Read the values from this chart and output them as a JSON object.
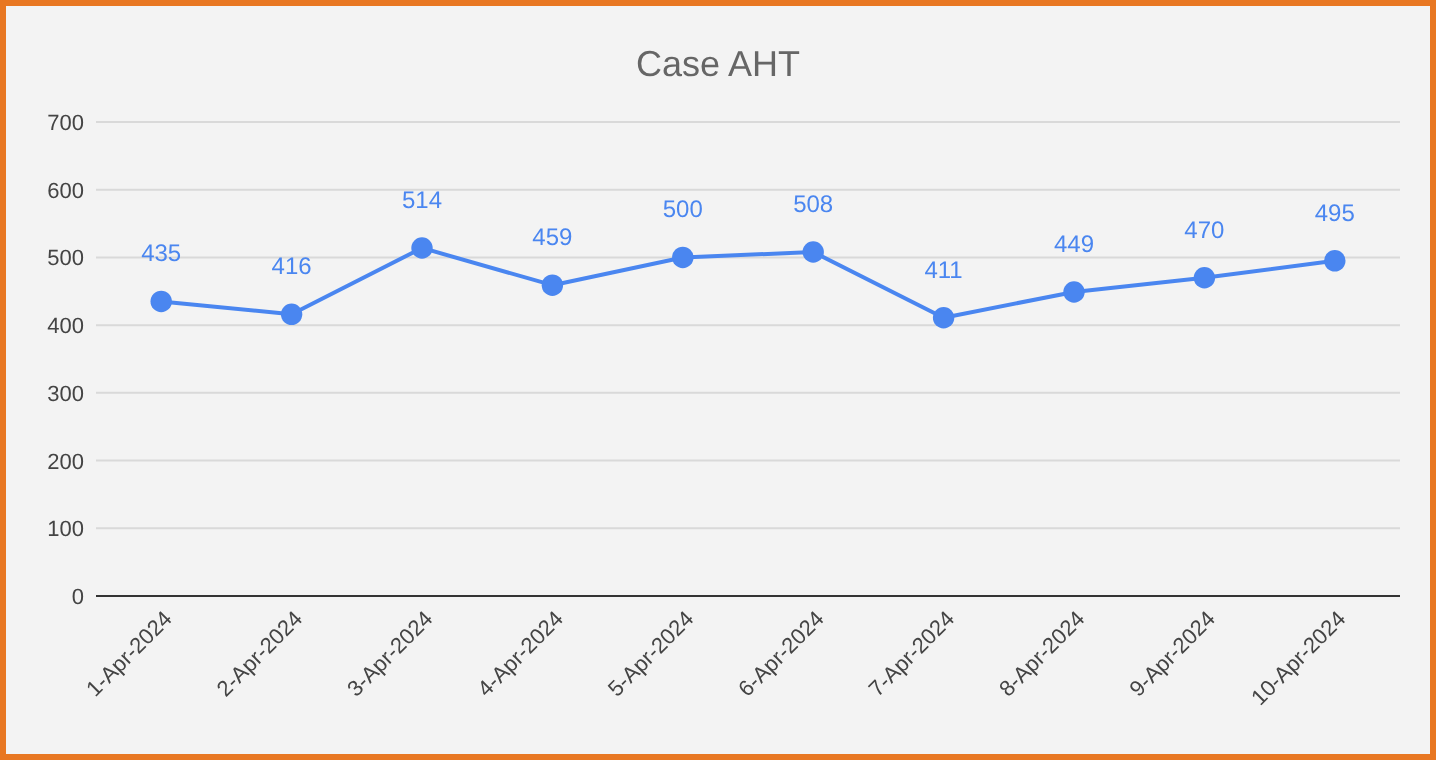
{
  "chart_data": {
    "type": "line",
    "title": "Case AHT",
    "categories": [
      "1-Apr-2024",
      "2-Apr-2024",
      "3-Apr-2024",
      "4-Apr-2024",
      "5-Apr-2024",
      "6-Apr-2024",
      "7-Apr-2024",
      "8-Apr-2024",
      "9-Apr-2024",
      "10-Apr-2024"
    ],
    "series": [
      {
        "color": "#4a86f0",
        "values": [
          435,
          416,
          514,
          459,
          500,
          508,
          411,
          449,
          470,
          495
        ]
      }
    ],
    "ylim": [
      0,
      700
    ],
    "yticks": [
      0,
      100,
      200,
      300,
      400,
      500,
      600,
      700
    ],
    "grid": "y",
    "marker": "circle",
    "line_style": "solid",
    "data_labels": true
  }
}
